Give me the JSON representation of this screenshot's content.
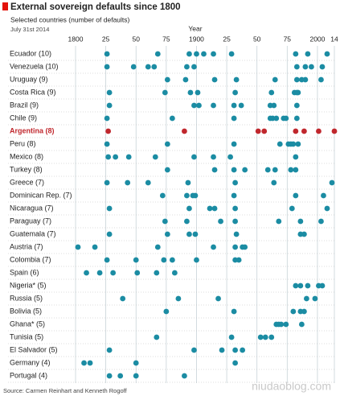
{
  "chart_data": {
    "type": "dot",
    "title": "External sovereign defaults since 1800",
    "subtitle": "Selected countries (number of defaults)",
    "date": "July 31st 2014",
    "xlabel": "Year",
    "source": "Source: Carmen Reinhart and Kenneth Rogoff",
    "watermark": "niudaoblog.com",
    "xlim": [
      1800,
      2014
    ],
    "xticks": [
      1800,
      {
        "value": 1825,
        "label": "25"
      },
      {
        "value": 1850,
        "label": "50"
      },
      {
        "value": 1875,
        "label": "75"
      },
      1900,
      {
        "value": 1925,
        "label": "25"
      },
      {
        "value": 1950,
        "label": "50"
      },
      {
        "value": 1975,
        "label": "75"
      },
      2000,
      {
        "value": 2014,
        "label": "14"
      }
    ],
    "grid": true,
    "series": [
      {
        "name": "Ecuador (10)",
        "color": "#1b8ca3",
        "values": [
          1826,
          1868,
          1894,
          1900,
          1906,
          1914,
          1929,
          1982,
          1992,
          2008
        ]
      },
      {
        "name": "Venezuela (10)",
        "color": "#1b8ca3",
        "values": [
          1826,
          1848,
          1860,
          1865,
          1892,
          1898,
          1983,
          1990,
          1995,
          2004
        ]
      },
      {
        "name": "Uruguay (9)",
        "color": "#1b8ca3",
        "values": [
          1876,
          1891,
          1915,
          1933,
          1965,
          1983,
          1987,
          1990,
          2003
        ]
      },
      {
        "name": "Costa Rica (9)",
        "color": "#1b8ca3",
        "values": [
          1828,
          1874,
          1895,
          1901,
          1932,
          1962,
          1981,
          1983,
          1984
        ]
      },
      {
        "name": "Brazil (9)",
        "color": "#1b8ca3",
        "values": [
          1828,
          1898,
          1902,
          1914,
          1931,
          1937,
          1961,
          1964,
          1983
        ]
      },
      {
        "name": "Chile (9)",
        "color": "#1b8ca3",
        "values": [
          1826,
          1880,
          1931,
          1961,
          1963,
          1966,
          1972,
          1974,
          1983
        ]
      },
      {
        "name": "Argentina (8)",
        "color": "#c0272d",
        "values": [
          1827,
          1890,
          1951,
          1956,
          1982,
          1989,
          2001,
          2014
        ]
      },
      {
        "name": "Peru (8)",
        "color": "#1b8ca3",
        "values": [
          1826,
          1876,
          1931,
          1969,
          1976,
          1978,
          1980,
          1984
        ]
      },
      {
        "name": "Mexico (8)",
        "color": "#1b8ca3",
        "values": [
          1827,
          1833,
          1844,
          1866,
          1898,
          1914,
          1928,
          1982
        ]
      },
      {
        "name": "Turkey (8)",
        "color": "#1b8ca3",
        "values": [
          1876,
          1915,
          1931,
          1940,
          1959,
          1965,
          1978,
          1982
        ]
      },
      {
        "name": "Greece (7)",
        "color": "#1b8ca3",
        "values": [
          1826,
          1843,
          1860,
          1893,
          1932,
          1964,
          2012
        ]
      },
      {
        "name": "Dominican Rep. (7)",
        "color": "#1b8ca3",
        "values": [
          1872,
          1892,
          1897,
          1899,
          1931,
          1982,
          2005
        ]
      },
      {
        "name": "Nicaragua (7)",
        "color": "#1b8ca3",
        "values": [
          1828,
          1894,
          1911,
          1915,
          1932,
          1979,
          2008
        ]
      },
      {
        "name": "Paraguay (7)",
        "color": "#1b8ca3",
        "values": [
          1874,
          1892,
          1920,
          1932,
          1968,
          1986,
          2003
        ]
      },
      {
        "name": "Guatemala (7)",
        "color": "#1b8ca3",
        "values": [
          1828,
          1876,
          1894,
          1899,
          1933,
          1986,
          1989
        ]
      },
      {
        "name": "Austria (7)",
        "color": "#1b8ca3",
        "values": [
          1802,
          1816,
          1868,
          1914,
          1932,
          1938,
          1940
        ]
      },
      {
        "name": "Colombia (7)",
        "color": "#1b8ca3",
        "values": [
          1826,
          1850,
          1873,
          1880,
          1900,
          1932,
          1935
        ]
      },
      {
        "name": "Spain (6)",
        "color": "#1b8ca3",
        "values": [
          1809,
          1820,
          1831,
          1851,
          1867,
          1882
        ]
      },
      {
        "name": "Nigeria* (5)",
        "color": "#1b8ca3",
        "values": [
          1982,
          1986,
          1992,
          2001,
          2004
        ]
      },
      {
        "name": "Russia (5)",
        "color": "#1b8ca3",
        "values": [
          1839,
          1885,
          1918,
          1991,
          1998
        ]
      },
      {
        "name": "Bolivia (5)",
        "color": "#1b8ca3",
        "values": [
          1875,
          1931,
          1980,
          1986,
          1989
        ]
      },
      {
        "name": "Ghana* (5)",
        "color": "#1b8ca3",
        "values": [
          1966,
          1968,
          1970,
          1974,
          1987
        ]
      },
      {
        "name": "Tunisia (5)",
        "color": "#1b8ca3",
        "values": [
          1867,
          1929,
          1953,
          1957,
          1962
        ]
      },
      {
        "name": "El Salvador (5)",
        "color": "#1b8ca3",
        "values": [
          1828,
          1898,
          1921,
          1932,
          1938
        ]
      },
      {
        "name": "Germany (4)",
        "color": "#1b8ca3",
        "values": [
          1807,
          1812,
          1850,
          1932
        ]
      },
      {
        "name": "Portugal (4)",
        "color": "#1b8ca3",
        "values": [
          1828,
          1837,
          1850,
          1890
        ]
      }
    ]
  }
}
